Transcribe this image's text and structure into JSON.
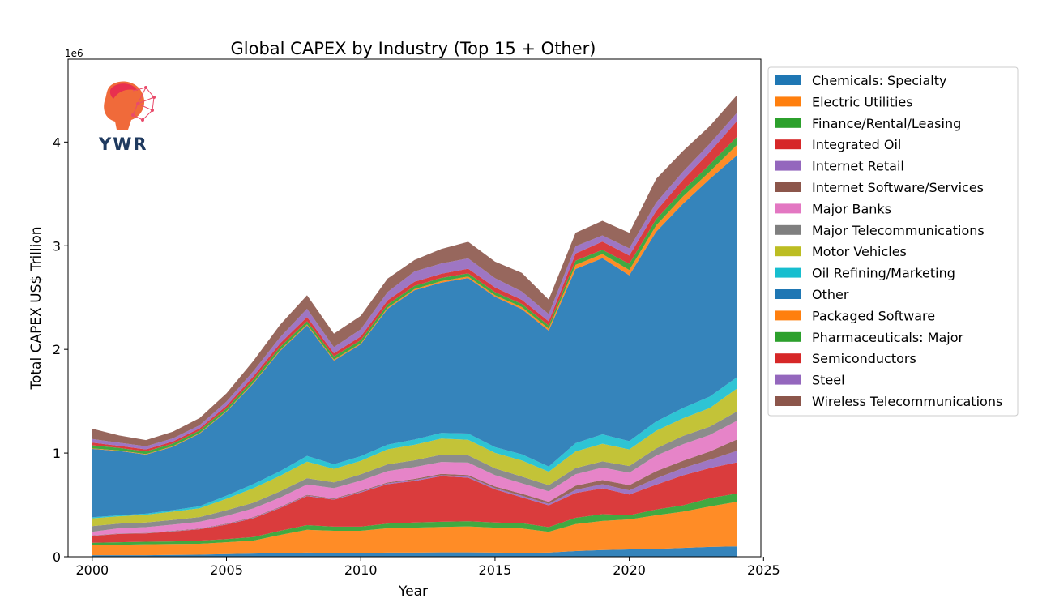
{
  "chart_data": {
    "type": "area",
    "stacked": true,
    "title": "Global CAPEX by Industry (Top 15 + Other)",
    "xlabel": "Year",
    "ylabel": "Total CAPEX US$ Trillion",
    "scale_label": "1e6",
    "xlim": [
      1999.1,
      2024.9
    ],
    "ylim": [
      0,
      4800000
    ],
    "x_ticks": [
      2000,
      2005,
      2010,
      2015,
      2020,
      2025
    ],
    "y_ticks": [
      0,
      1000000,
      2000000,
      3000000,
      4000000
    ],
    "y_tick_labels": [
      "0",
      "1",
      "2",
      "3",
      "4"
    ],
    "legend_position": "outside-right",
    "x": [
      2000,
      2001,
      2002,
      2003,
      2004,
      2005,
      2006,
      2007,
      2008,
      2009,
      2010,
      2011,
      2012,
      2013,
      2014,
      2015,
      2016,
      2017,
      2018,
      2019,
      2020,
      2021,
      2022,
      2023,
      2024
    ],
    "series": [
      {
        "name": "Chemicals: Specialty",
        "color": "#1f77b4",
        "values": [
          15000,
          15000,
          15000,
          18000,
          20000,
          25000,
          30000,
          35000,
          40000,
          35000,
          35000,
          40000,
          40000,
          42000,
          42000,
          40000,
          38000,
          40000,
          55000,
          65000,
          70000,
          75000,
          85000,
          95000,
          100000
        ]
      },
      {
        "name": "Electric Utilities",
        "color": "#ff7f0e",
        "values": [
          95000,
          100000,
          105000,
          105000,
          105000,
          115000,
          125000,
          175000,
          220000,
          215000,
          215000,
          235000,
          240000,
          245000,
          250000,
          240000,
          235000,
          200000,
          260000,
          280000,
          290000,
          325000,
          350000,
          390000,
          430000
        ]
      },
      {
        "name": "Finance/Rental/Leasing",
        "color": "#2ca02c",
        "values": [
          25000,
          25000,
          25000,
          25000,
          30000,
          30000,
          35000,
          40000,
          45000,
          40000,
          40000,
          45000,
          50000,
          50000,
          50000,
          50000,
          50000,
          45000,
          60000,
          65000,
          40000,
          55000,
          60000,
          80000,
          80000
        ]
      },
      {
        "name": "Integrated Oil",
        "color": "#d62728",
        "values": [
          65000,
          80000,
          80000,
          95000,
          110000,
          140000,
          180000,
          220000,
          280000,
          260000,
          330000,
          380000,
          400000,
          440000,
          420000,
          320000,
          250000,
          210000,
          240000,
          250000,
          200000,
          240000,
          290000,
          290000,
          300000
        ]
      },
      {
        "name": "Internet Retail",
        "color": "#9467bd",
        "values": [
          2000,
          2000,
          2000,
          3000,
          3000,
          4000,
          5000,
          5000,
          5000,
          5000,
          6000,
          8000,
          10000,
          10000,
          12000,
          12000,
          15000,
          15000,
          30000,
          40000,
          40000,
          60000,
          70000,
          80000,
          110000
        ]
      },
      {
        "name": "Internet Software/Services",
        "color": "#8c564b",
        "values": [
          3000,
          3000,
          3000,
          4000,
          4000,
          5000,
          6000,
          6000,
          7000,
          7000,
          8000,
          8000,
          10000,
          12000,
          14000,
          15000,
          20000,
          20000,
          40000,
          40000,
          50000,
          70000,
          70000,
          80000,
          110000
        ]
      },
      {
        "name": "Major Banks",
        "color": "#e377c2",
        "values": [
          35000,
          50000,
          55000,
          60000,
          65000,
          75000,
          85000,
          90000,
          100000,
          100000,
          100000,
          110000,
          115000,
          115000,
          120000,
          110000,
          100000,
          100000,
          110000,
          120000,
          120000,
          150000,
          160000,
          160000,
          180000
        ]
      },
      {
        "name": "Major Telecommunications",
        "color": "#7f7f7f",
        "values": [
          55000,
          45000,
          45000,
          45000,
          45000,
          55000,
          55000,
          60000,
          60000,
          55000,
          60000,
          65000,
          65000,
          70000,
          70000,
          65000,
          65000,
          60000,
          60000,
          60000,
          65000,
          70000,
          80000,
          80000,
          90000
        ]
      },
      {
        "name": "Motor Vehicles",
        "color": "#bcbd22",
        "values": [
          75000,
          70000,
          75000,
          80000,
          85000,
          110000,
          140000,
          150000,
          160000,
          130000,
          130000,
          145000,
          150000,
          155000,
          150000,
          150000,
          155000,
          130000,
          160000,
          170000,
          160000,
          170000,
          170000,
          180000,
          220000
        ]
      },
      {
        "name": "Oil Refining/Marketing",
        "color": "#17becf",
        "values": [
          10000,
          10000,
          10000,
          15000,
          20000,
          30000,
          40000,
          45000,
          55000,
          45000,
          45000,
          45000,
          50000,
          55000,
          60000,
          55000,
          60000,
          50000,
          80000,
          90000,
          80000,
          90000,
          100000,
          110000,
          110000
        ]
      },
      {
        "name": "Other",
        "color": "#1f77b4",
        "values": [
          660000,
          620000,
          570000,
          610000,
          700000,
          810000,
          970000,
          1160000,
          1260000,
          1000000,
          1080000,
          1310000,
          1440000,
          1450000,
          1500000,
          1450000,
          1400000,
          1310000,
          1680000,
          1700000,
          1600000,
          1830000,
          1970000,
          2100000,
          2140000
        ]
      },
      {
        "name": "Packaged Software",
        "color": "#ff7f0e",
        "values": [
          5000,
          5000,
          5000,
          6000,
          6000,
          7000,
          8000,
          8000,
          10000,
          10000,
          10000,
          12000,
          12000,
          15000,
          15000,
          15000,
          20000,
          20000,
          40000,
          40000,
          50000,
          60000,
          70000,
          70000,
          100000
        ]
      },
      {
        "name": "Pharmaceuticals: Major",
        "color": "#2ca02c",
        "values": [
          30000,
          25000,
          25000,
          25000,
          25000,
          25000,
          30000,
          30000,
          30000,
          30000,
          30000,
          30000,
          30000,
          30000,
          30000,
          30000,
          30000,
          30000,
          40000,
          40000,
          60000,
          60000,
          60000,
          70000,
          80000
        ]
      },
      {
        "name": "Semiconductors",
        "color": "#d62728",
        "values": [
          25000,
          20000,
          20000,
          20000,
          20000,
          25000,
          30000,
          35000,
          40000,
          30000,
          35000,
          40000,
          40000,
          40000,
          45000,
          45000,
          40000,
          40000,
          70000,
          80000,
          80000,
          80000,
          100000,
          120000,
          150000
        ]
      },
      {
        "name": "Steel",
        "color": "#9467bd",
        "values": [
          35000,
          30000,
          30000,
          30000,
          30000,
          40000,
          50000,
          60000,
          80000,
          60000,
          70000,
          80000,
          100000,
          100000,
          100000,
          90000,
          80000,
          70000,
          70000,
          60000,
          70000,
          80000,
          80000,
          80000,
          80000
        ]
      },
      {
        "name": "Wireless Telecommunications",
        "color": "#8c564b",
        "values": [
          100000,
          70000,
          60000,
          65000,
          70000,
          80000,
          100000,
          120000,
          130000,
          130000,
          130000,
          130000,
          110000,
          140000,
          160000,
          160000,
          180000,
          140000,
          130000,
          140000,
          150000,
          230000,
          200000,
          170000,
          170000
        ]
      }
    ]
  },
  "logo": {
    "text": "YWR"
  }
}
